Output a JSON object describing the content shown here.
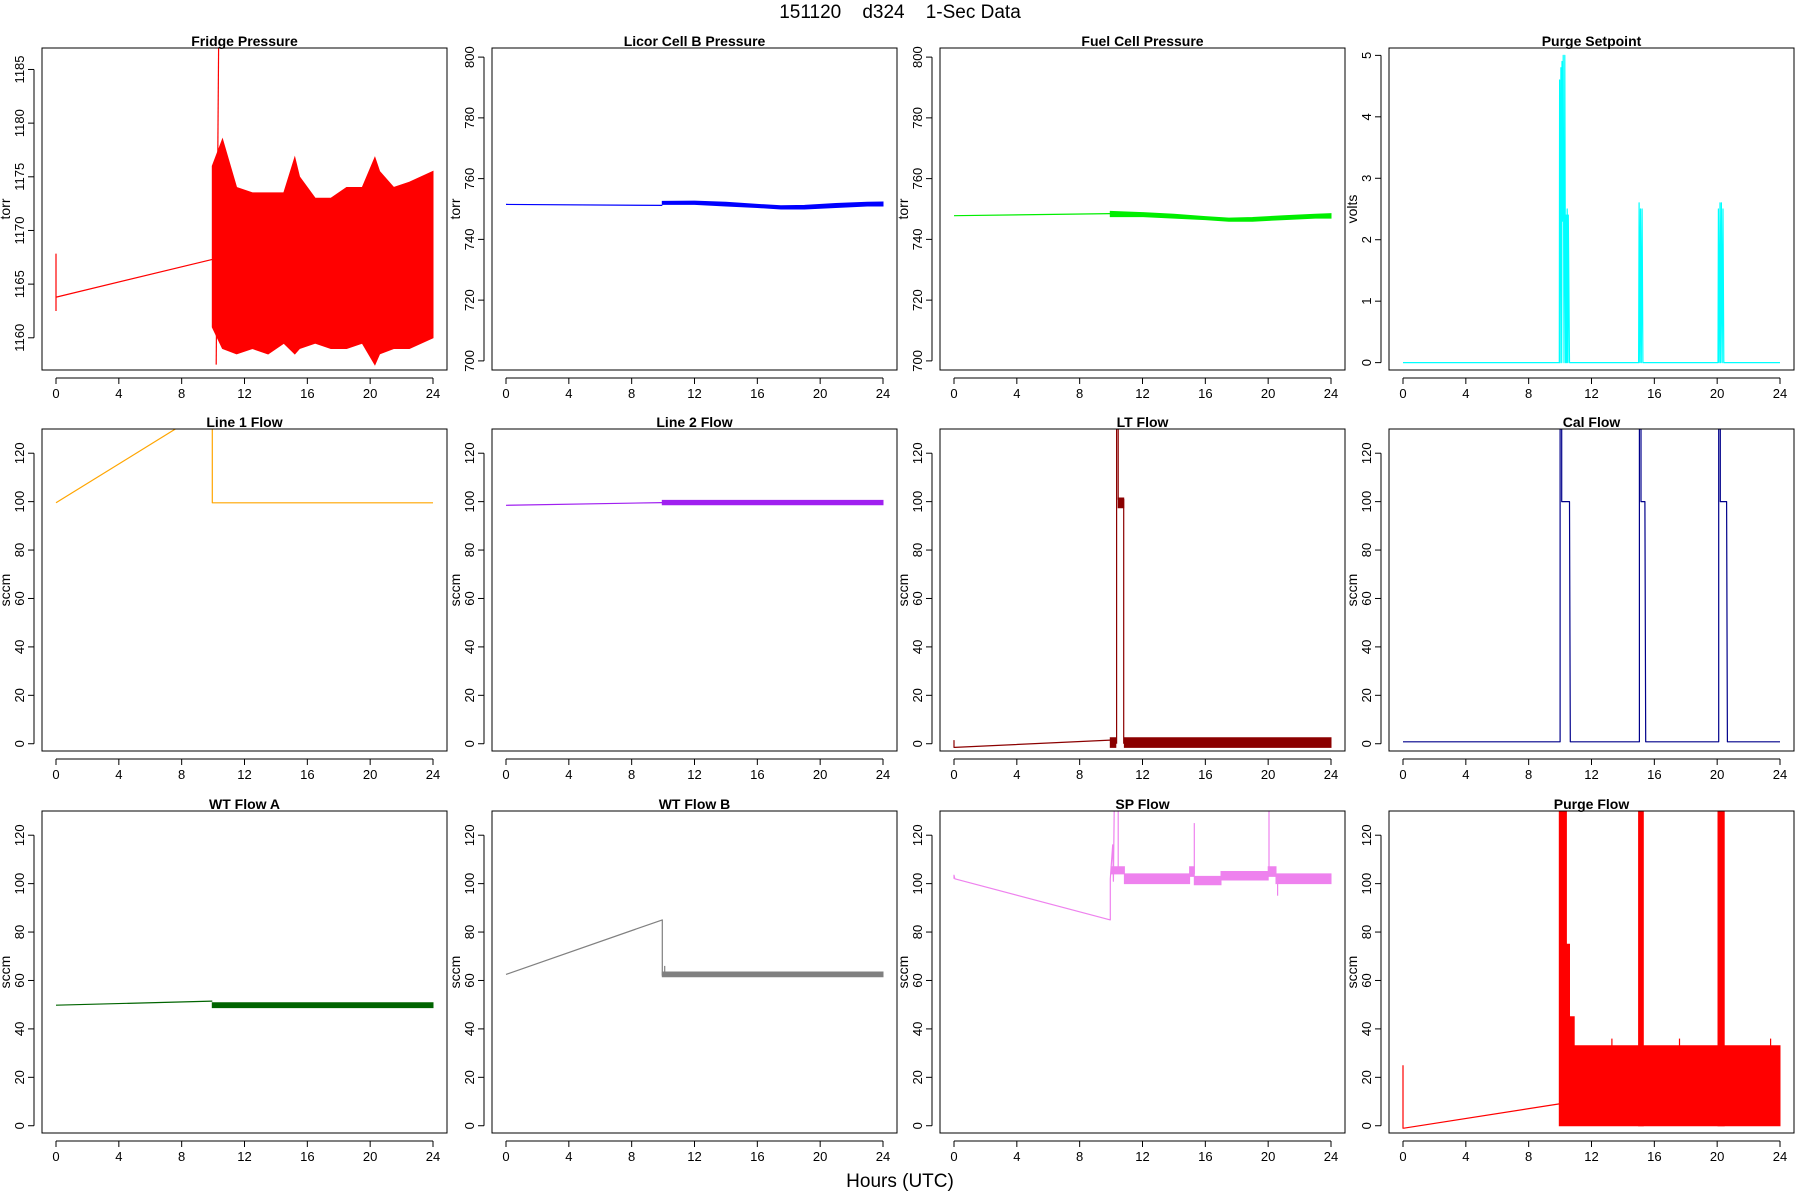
{
  "page": {
    "title": "151120    d324    1-Sec Data",
    "xlabel": "Hours (UTC)"
  },
  "chart_data": [
    {
      "type": "line",
      "title": "Fridge Pressure",
      "ylabel": "torr",
      "color": "#ff0000",
      "xlim": [
        0,
        24
      ],
      "ylim": [
        1157,
        1187
      ],
      "xticks": [
        0,
        4,
        8,
        12,
        16,
        20,
        24
      ],
      "yticks": [
        1160,
        1165,
        1170,
        1175,
        1180,
        1185
      ],
      "series": [
        {
          "style": "line",
          "x": [
            0,
            0,
            0,
            0.05,
            9.95
          ],
          "y": [
            1162.5,
            1167.8,
            1163.8,
            1163.8,
            1167.3
          ]
        },
        {
          "style": "spike",
          "x": [
            10.2,
            10.35
          ],
          "y": [
            1157.5,
            1187
          ]
        },
        {
          "style": "band",
          "x": [
            9.95,
            10.6,
            11.5,
            12.5,
            13.5,
            14.5,
            15.2,
            15.5,
            16.5,
            17.5,
            18.5,
            19.5,
            20.3,
            20.6,
            21.5,
            22.5,
            24
          ],
          "lo": [
            1161,
            1159,
            1158.5,
            1159,
            1158.5,
            1159.5,
            1158.5,
            1159,
            1159.5,
            1159,
            1159,
            1159.5,
            1157.5,
            1158.5,
            1159,
            1159,
            1160
          ],
          "hi": [
            1176,
            1178.5,
            1174,
            1173.5,
            1173.5,
            1173.5,
            1176.8,
            1175,
            1173,
            1173,
            1174,
            1174,
            1176.8,
            1175.5,
            1174,
            1174.5,
            1175.5
          ]
        }
      ]
    },
    {
      "type": "line",
      "title": "Licor Cell B Pressure",
      "ylabel": "torr",
      "color": "#0000ff",
      "xlim": [
        0,
        24
      ],
      "ylim": [
        697,
        803
      ],
      "xticks": [
        0,
        4,
        8,
        12,
        16,
        20,
        24
      ],
      "yticks": [
        700,
        720,
        740,
        760,
        780,
        800
      ],
      "series": [
        {
          "style": "line",
          "x": [
            0,
            9.95
          ],
          "y": [
            751.5,
            751.2
          ]
        },
        {
          "style": "band",
          "x": [
            9.95,
            12,
            14,
            16,
            17.5,
            19,
            21,
            23,
            24
          ],
          "lo": [
            751.5,
            751.5,
            751,
            750.5,
            750,
            750,
            750.5,
            751,
            751
          ],
          "hi": [
            752.5,
            752.6,
            752.2,
            751.5,
            751.1,
            751.2,
            751.8,
            752.2,
            752.3
          ]
        }
      ]
    },
    {
      "type": "line",
      "title": "Fuel Cell Pressure",
      "ylabel": "torr",
      "color": "#00ee00",
      "xlim": [
        0,
        24
      ],
      "ylim": [
        697,
        803
      ],
      "xticks": [
        0,
        4,
        8,
        12,
        16,
        20,
        24
      ],
      "yticks": [
        700,
        720,
        740,
        760,
        780,
        800
      ],
      "series": [
        {
          "style": "line",
          "x": [
            0,
            9.95
          ],
          "y": [
            747.8,
            748.5
          ]
        },
        {
          "style": "band",
          "x": [
            9.95,
            12,
            14,
            16,
            17.5,
            19,
            21,
            23,
            24
          ],
          "lo": [
            747.5,
            747.5,
            747,
            746.5,
            746,
            746,
            746.5,
            747,
            747
          ],
          "hi": [
            749.2,
            748.8,
            748.3,
            747.5,
            747,
            747.2,
            747.8,
            748.3,
            748.5
          ]
        }
      ]
    },
    {
      "type": "line",
      "title": "Purge Setpoint",
      "ylabel": "volts",
      "color": "#00ffff",
      "xlim": [
        0,
        24
      ],
      "ylim": [
        -0.12,
        5.12
      ],
      "xticks": [
        0,
        4,
        8,
        12,
        16,
        20,
        24
      ],
      "yticks": [
        0,
        1,
        2,
        3,
        4,
        5
      ],
      "series": [
        {
          "style": "line",
          "x": [
            0,
            9.95,
            9.97,
            10.0,
            10.05,
            10.1,
            10.12,
            10.15,
            10.2,
            10.25,
            10.28,
            10.3,
            10.35,
            10.38,
            10.42,
            10.45,
            10.5,
            10.52,
            10.6,
            10.63,
            15.0,
            15.03,
            15.08,
            15.12,
            15.17,
            15.22,
            15.27,
            15.3,
            20.05,
            20.08,
            20.13,
            20.18,
            20.22,
            20.27,
            20.32,
            20.37,
            20.42,
            20.45,
            24
          ],
          "y": [
            0,
            0,
            4.6,
            0,
            4.8,
            0,
            4.9,
            2.3,
            5.0,
            0,
            2.5,
            5.0,
            0,
            2.4,
            0,
            2.5,
            0,
            2.4,
            0,
            0,
            0,
            2.6,
            0,
            2.5,
            0,
            2.5,
            0,
            0,
            0,
            2.5,
            0,
            2.6,
            0,
            2.6,
            0,
            2.5,
            0,
            0,
            0
          ]
        }
      ]
    },
    {
      "type": "line",
      "title": "Line 1 Flow",
      "ylabel": "sccm",
      "color": "#ffa500",
      "xlim": [
        0,
        24
      ],
      "ylim": [
        -3,
        130
      ],
      "xticks": [
        0,
        4,
        8,
        12,
        16,
        20,
        24
      ],
      "yticks": [
        0,
        20,
        40,
        60,
        80,
        100,
        120
      ],
      "series": [
        {
          "style": "line",
          "x": [
            0,
            7.6
          ],
          "y": [
            99.5,
            130
          ]
        },
        {
          "style": "line",
          "x": [
            9.95,
            9.95,
            24
          ],
          "y": [
            130,
            99.5,
            99.5
          ]
        }
      ]
    },
    {
      "type": "line",
      "title": "Line 2 Flow",
      "ylabel": "sccm",
      "color": "#a020f0",
      "xlim": [
        0,
        24
      ],
      "ylim": [
        -3,
        130
      ],
      "xticks": [
        0,
        4,
        8,
        12,
        16,
        20,
        24
      ],
      "yticks": [
        0,
        20,
        40,
        60,
        80,
        100,
        120
      ],
      "series": [
        {
          "style": "line",
          "x": [
            0,
            9.95
          ],
          "y": [
            98.5,
            99.6
          ]
        },
        {
          "style": "band",
          "x": [
            9.95,
            24
          ],
          "lo": [
            98.7,
            98.7
          ],
          "hi": [
            100.5,
            100.5
          ]
        }
      ]
    },
    {
      "type": "line",
      "title": "LT Flow",
      "ylabel": "sccm",
      "color": "#8b0000",
      "xlim": [
        0,
        24
      ],
      "ylim": [
        -3,
        130
      ],
      "xticks": [
        0,
        4,
        8,
        12,
        16,
        20,
        24
      ],
      "yticks": [
        0,
        20,
        40,
        60,
        80,
        100,
        120
      ],
      "series": [
        {
          "style": "line",
          "x": [
            0,
            0,
            0.05,
            9.95
          ],
          "y": [
            1.5,
            -1.5,
            -1.5,
            1.5
          ]
        },
        {
          "style": "line",
          "x": [
            10.35,
            10.35,
            10.45,
            10.45,
            10.8,
            10.8
          ],
          "y": [
            0,
            130,
            130,
            101,
            101,
            0
          ]
        },
        {
          "style": "band",
          "x": [
            9.95,
            10.3
          ],
          "lo": [
            -1.5,
            -1.5
          ],
          "hi": [
            2.5,
            2.5
          ]
        },
        {
          "style": "band",
          "x": [
            10.45,
            10.8
          ],
          "lo": [
            97.5,
            97.5
          ],
          "hi": [
            101.5,
            101.5
          ]
        },
        {
          "style": "band",
          "x": [
            10.85,
            24
          ],
          "lo": [
            -1.5,
            -1.5
          ],
          "hi": [
            2.5,
            2.5
          ]
        }
      ]
    },
    {
      "type": "line",
      "title": "Cal Flow",
      "ylabel": "sccm",
      "color": "#00008b",
      "xlim": [
        0,
        24
      ],
      "ylim": [
        -3,
        130
      ],
      "xticks": [
        0,
        4,
        8,
        12,
        16,
        20,
        24
      ],
      "yticks": [
        0,
        20,
        40,
        60,
        80,
        100,
        120
      ],
      "series": [
        {
          "style": "line",
          "x": [
            0,
            9.95,
            10.0,
            10.0,
            10.1,
            10.1,
            10.6,
            10.65,
            15.0,
            15.05,
            15.05,
            15.15,
            15.15,
            15.4,
            15.45,
            20.05,
            20.1,
            20.1,
            20.2,
            20.2,
            20.6,
            20.65,
            24
          ],
          "y": [
            0.8,
            0.8,
            0.8,
            130,
            130,
            100,
            100,
            0.8,
            0.8,
            0.8,
            130,
            130,
            100,
            100,
            0.8,
            0.8,
            0.8,
            130,
            130,
            100,
            100,
            0.8,
            0.8
          ]
        }
      ]
    },
    {
      "type": "line",
      "title": "WT Flow A",
      "ylabel": "sccm",
      "color": "#006400",
      "xlim": [
        0,
        24
      ],
      "ylim": [
        -3,
        130
      ],
      "xticks": [
        0,
        4,
        8,
        12,
        16,
        20,
        24
      ],
      "yticks": [
        0,
        20,
        40,
        60,
        80,
        100,
        120
      ],
      "series": [
        {
          "style": "line",
          "x": [
            0,
            9.95
          ],
          "y": [
            49.8,
            51.5
          ]
        },
        {
          "style": "band",
          "x": [
            9.95,
            24
          ],
          "lo": [
            48.8,
            48.8
          ],
          "hi": [
            50.8,
            50.8
          ]
        }
      ]
    },
    {
      "type": "line",
      "title": "WT Flow B",
      "ylabel": "sccm",
      "color": "#808080",
      "xlim": [
        0,
        24
      ],
      "ylim": [
        -3,
        130
      ],
      "xticks": [
        0,
        4,
        8,
        12,
        16,
        20,
        24
      ],
      "yticks": [
        0,
        20,
        40,
        60,
        80,
        100,
        120
      ],
      "series": [
        {
          "style": "line",
          "x": [
            0,
            9.95,
            9.95
          ],
          "y": [
            62.5,
            85,
            62
          ]
        },
        {
          "style": "spike",
          "x": [
            10.1,
            10.1
          ],
          "y": [
            62,
            66
          ]
        },
        {
          "style": "band",
          "x": [
            9.95,
            24
          ],
          "lo": [
            61.5,
            61.5
          ],
          "hi": [
            63.5,
            63.5
          ]
        }
      ]
    },
    {
      "type": "line",
      "title": "SP Flow",
      "ylabel": "sccm",
      "color": "#ee82ee",
      "xlim": [
        0,
        24
      ],
      "ylim": [
        -3,
        130
      ],
      "xticks": [
        0,
        4,
        8,
        12,
        16,
        20,
        24
      ],
      "yticks": [
        0,
        20,
        40,
        60,
        80,
        100,
        120
      ],
      "series": [
        {
          "style": "line",
          "x": [
            0,
            0,
            0.05,
            9.95,
            9.95,
            10.1,
            10.15,
            10.2
          ],
          "y": [
            102,
            103.5,
            102,
            85,
            102,
            116,
            101,
            130
          ]
        },
        {
          "style": "band",
          "x": [
            10.0,
            10.85
          ],
          "lo": [
            104,
            104
          ],
          "hi": [
            107,
            107
          ]
        },
        {
          "style": "band",
          "x": [
            10.85,
            15.0,
            15.0,
            15.3,
            15.3,
            17.0,
            17.0,
            20.0,
            20.0,
            20.5,
            20.5,
            24
          ],
          "lo": [
            100,
            100,
            103,
            103,
            99.5,
            99.5,
            101.5,
            101.5,
            103,
            103,
            100,
            100
          ],
          "hi": [
            104,
            104,
            107,
            107,
            103,
            103,
            105,
            105,
            107,
            107,
            104,
            104
          ]
        },
        {
          "style": "spike",
          "x": [
            10.45,
            10.45
          ],
          "y": [
            104,
            130
          ]
        },
        {
          "style": "spike",
          "x": [
            15.3,
            15.3
          ],
          "y": [
            104,
            125
          ]
        },
        {
          "style": "spike",
          "x": [
            20.05,
            20.05
          ],
          "y": [
            104,
            130
          ]
        },
        {
          "style": "spike",
          "x": [
            20.6,
            20.6
          ],
          "y": [
            95,
            104
          ]
        }
      ]
    },
    {
      "type": "line",
      "title": "Purge Flow",
      "ylabel": "sccm",
      "color": "#ff0000",
      "xlim": [
        0,
        24
      ],
      "ylim": [
        -3,
        130
      ],
      "xticks": [
        0,
        4,
        8,
        12,
        16,
        20,
        24
      ],
      "yticks": [
        0,
        20,
        40,
        60,
        80,
        100,
        120
      ],
      "series": [
        {
          "style": "line",
          "x": [
            0,
            0,
            0.05,
            9.95
          ],
          "y": [
            25,
            -1,
            -1,
            9
          ]
        },
        {
          "style": "band",
          "x": [
            9.95,
            10.4,
            10.4,
            10.6,
            10.6,
            10.9,
            10.9,
            24
          ],
          "lo": [
            0,
            0,
            0,
            0,
            0,
            0,
            0,
            0
          ],
          "hi": [
            130,
            130,
            75,
            75,
            45,
            45,
            33,
            33
          ]
        },
        {
          "style": "band",
          "x": [
            15.0,
            15.3
          ],
          "lo": [
            0,
            0
          ],
          "hi": [
            130,
            130
          ]
        },
        {
          "style": "band",
          "x": [
            20.05,
            20.45
          ],
          "lo": [
            0,
            0
          ],
          "hi": [
            130,
            130
          ]
        },
        {
          "style": "spike",
          "x": [
            13.3,
            13.3
          ],
          "y": [
            0,
            36
          ]
        },
        {
          "style": "spike",
          "x": [
            17.6,
            17.6
          ],
          "y": [
            0,
            36
          ]
        },
        {
          "style": "spike",
          "x": [
            23.4,
            23.4
          ],
          "y": [
            0,
            36
          ]
        }
      ]
    }
  ]
}
